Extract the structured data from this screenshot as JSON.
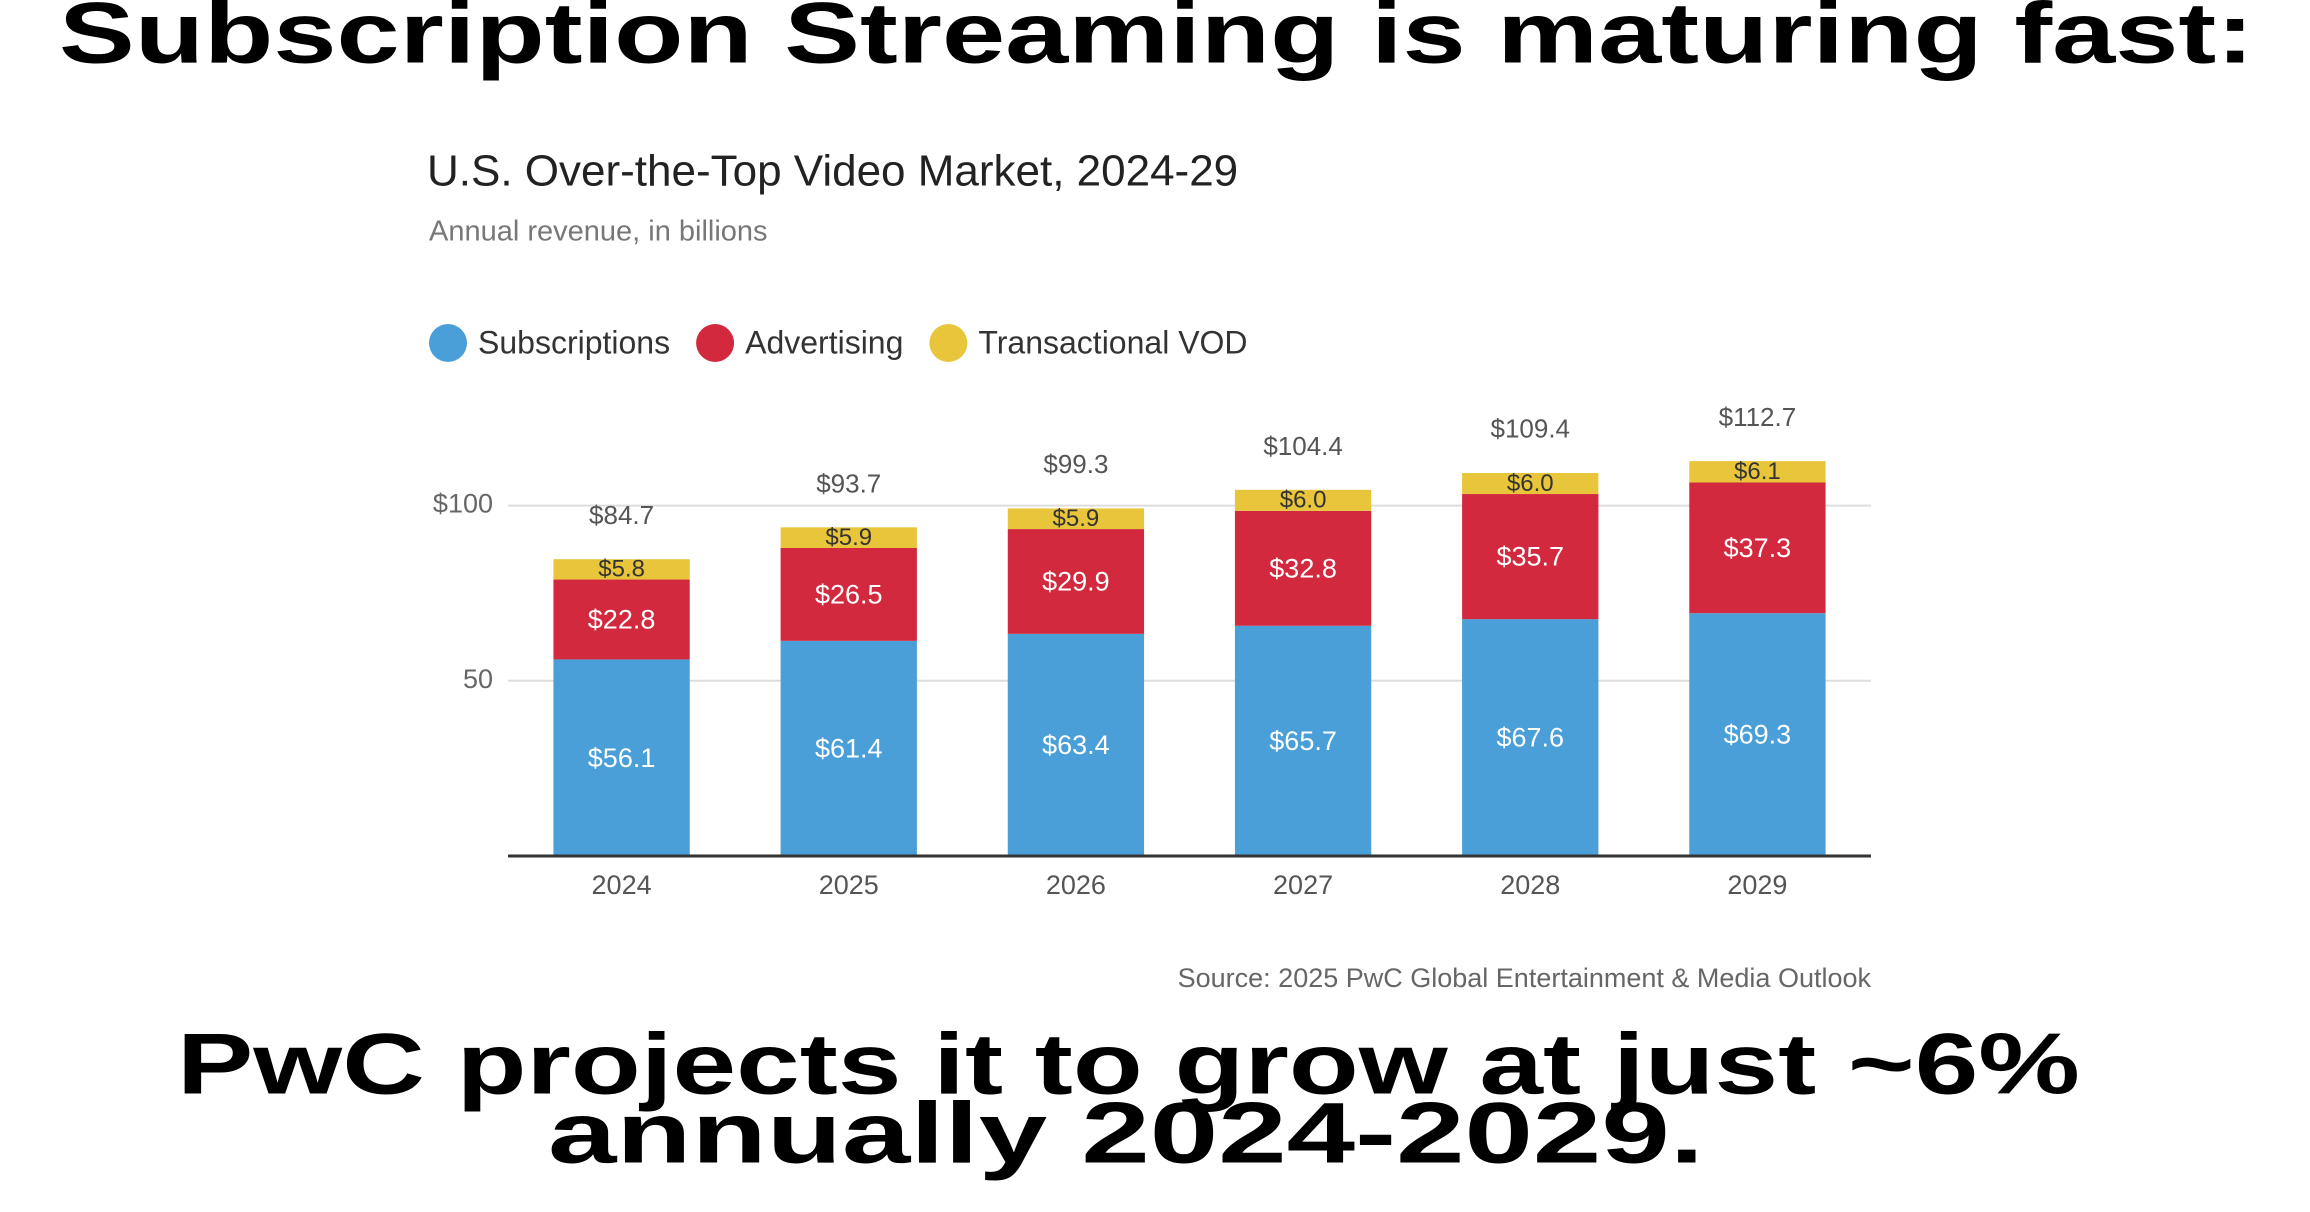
{
  "headline": "Subscription Streaming is maturing fast:",
  "conclusion": [
    "PwC projects it to grow at just ~6%",
    "annually 2024-2029."
  ],
  "chart_data": {
    "type": "stacked_bar",
    "title": "U.S. Over-the-Top Video Market, 2024-29",
    "subtitle": "Annual revenue, in billions",
    "source": "Source: 2025 PwC Global Entertainment & Media Outlook",
    "categories": [
      "2024",
      "2025",
      "2026",
      "2027",
      "2028",
      "2029"
    ],
    "series": [
      {
        "name": "Subscriptions",
        "color": "#4a9fd8",
        "values": [
          56.1,
          61.4,
          63.4,
          65.7,
          67.6,
          69.3
        ],
        "value_labels": [
          "$56.1",
          "$61.4",
          "$63.4",
          "$65.7",
          "$67.6",
          "$69.3"
        ]
      },
      {
        "name": "Advertising",
        "color": "#d2293f",
        "values": [
          22.8,
          26.5,
          29.9,
          32.8,
          35.7,
          37.3
        ],
        "value_labels": [
          "$22.8",
          "$26.5",
          "$29.9",
          "$32.8",
          "$35.7",
          "$37.3"
        ]
      },
      {
        "name": "Transactional VOD",
        "color": "#e8c53a",
        "values": [
          5.8,
          5.9,
          5.9,
          6.0,
          6.0,
          6.1
        ],
        "value_labels": [
          "$5.8",
          "$5.9",
          "$5.9",
          "$6.0",
          "$6.0",
          "$6.1"
        ]
      }
    ],
    "totals": [
      84.7,
      93.7,
      99.3,
      104.4,
      109.4,
      112.7
    ],
    "total_labels": [
      "$84.7",
      "$93.7",
      "$99.3",
      "$104.4",
      "$109.4",
      "$112.7"
    ],
    "ylim": [
      0,
      125
    ],
    "yticks": [
      50,
      {
        "value": 100,
        "label": "$100"
      }
    ],
    "grid": true
  }
}
